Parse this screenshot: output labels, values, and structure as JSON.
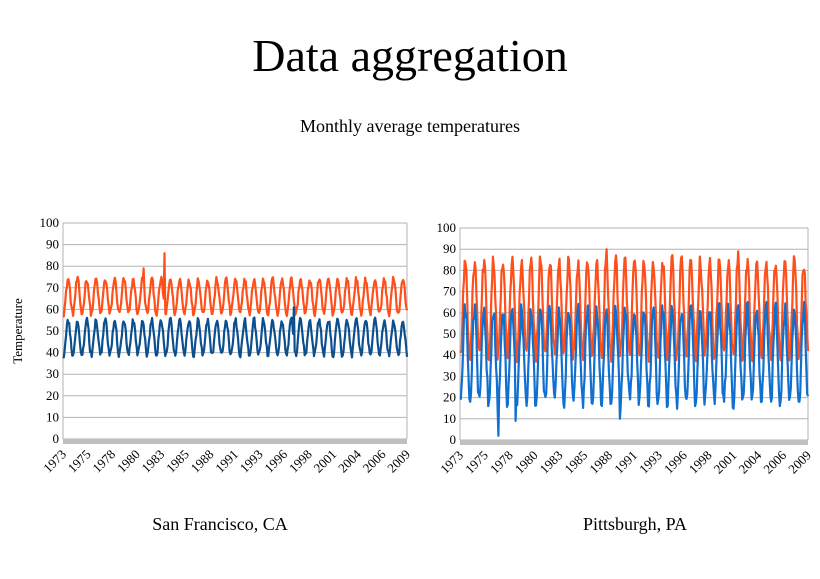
{
  "slide": {
    "title": "Data aggregation",
    "subtitle": "Monthly average temperatures"
  },
  "colors": {
    "high_series": "#ff4f1a",
    "sf_low_series": "#0b4f8f",
    "pit_low_series": "#1070d0",
    "grid": "#b3b3b3",
    "floor": "#c0c0c0"
  },
  "chart_data": [
    {
      "type": "line",
      "caption": "San Francisco, CA",
      "ylabel": "Temperature",
      "ylim": [
        0,
        100
      ],
      "yticks": [
        0,
        10,
        20,
        30,
        40,
        50,
        60,
        70,
        80,
        90,
        100
      ],
      "xlim": [
        1973,
        2010
      ],
      "xtick_labels": [
        "1973",
        "1975",
        "1978",
        "1980",
        "1983",
        "1985",
        "1988",
        "1991",
        "1993",
        "1996",
        "1998",
        "2001",
        "2004",
        "2006",
        "2009"
      ],
      "grid": true,
      "legend": "none",
      "series_pattern": {
        "high": {
          "mean": 66,
          "amplitude": 8,
          "spikes": [
            {
              "year": 1983.9,
              "value": 86
            },
            {
              "year": 1981.7,
              "value": 79
            }
          ]
        },
        "low": {
          "mean": 47,
          "amplitude": 8,
          "spikes": [
            {
              "year": 1997.8,
              "value": 61
            }
          ]
        }
      }
    },
    {
      "type": "line",
      "caption": "Pittsburgh, PA",
      "ylabel": "",
      "ylim": [
        0,
        100
      ],
      "yticks": [
        0,
        10,
        20,
        30,
        40,
        50,
        60,
        70,
        80,
        90,
        100
      ],
      "xlim": [
        1973,
        2010
      ],
      "xtick_labels": [
        "1973",
        "1975",
        "1978",
        "1980",
        "1983",
        "1985",
        "1988",
        "1991",
        "1993",
        "1996",
        "1998",
        "2001",
        "2004",
        "2006",
        "2009"
      ],
      "grid": true,
      "legend": "none",
      "series_pattern": {
        "high": {
          "mean": 62,
          "amplitude": 22,
          "spikes": [
            {
              "year": 1988.6,
              "value": 90
            },
            {
              "year": 2002.6,
              "value": 89
            }
          ]
        },
        "low": {
          "mean": 40,
          "amplitude": 22,
          "spikes": [
            {
              "year": 1977.1,
              "value": 2
            },
            {
              "year": 1990.0,
              "value": 10
            },
            {
              "year": 1978.9,
              "value": 9
            }
          ]
        }
      }
    }
  ]
}
